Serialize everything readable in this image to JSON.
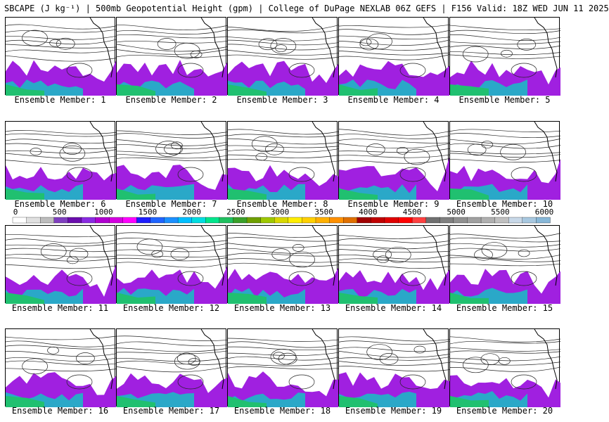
{
  "title": "SBCAPE (J kg⁻¹) | 500mb Geopotential Height (gpm) | College of DuPage NEXLAB 06Z GEFS | F156 Valid: 18Z WED JUN 11 2025",
  "members": [
    {
      "label": "Ensemble Member: 1"
    },
    {
      "label": "Ensemble Member: 2"
    },
    {
      "label": "Ensemble Member: 3"
    },
    {
      "label": "Ensemble Member: 4"
    },
    {
      "label": "Ensemble Member: 5"
    },
    {
      "label": "Ensemble Member: 6"
    },
    {
      "label": "Ensemble Member: 7"
    },
    {
      "label": "Ensemble Member: 8"
    },
    {
      "label": "Ensemble Member: 9"
    },
    {
      "label": "Ensemble Member: 10"
    },
    {
      "label": "Ensemble Member: 11"
    },
    {
      "label": "Ensemble Member: 12"
    },
    {
      "label": "Ensemble Member: 13"
    },
    {
      "label": "Ensemble Member: 14"
    },
    {
      "label": "Ensemble Member: 15"
    },
    {
      "label": "Ensemble Member: 16"
    },
    {
      "label": "Ensemble Member: 17"
    },
    {
      "label": "Ensemble Member: 18"
    },
    {
      "label": "Ensemble Member: 19"
    },
    {
      "label": "Ensemble Member: 20"
    }
  ],
  "colorbar": {
    "ticks": [
      "0",
      "500",
      "1000",
      "1500",
      "2000",
      "2500",
      "3000",
      "3500",
      "4000",
      "4500",
      "5000",
      "5500",
      "6000"
    ],
    "colors": [
      "#ffffff",
      "#e0e0e0",
      "#bdbdbd",
      "#7f3fbf",
      "#6a0dad",
      "#8a2be2",
      "#b000d0",
      "#d400e0",
      "#ff00ff",
      "#1e1eff",
      "#1f64ff",
      "#1c90ff",
      "#00bfff",
      "#00dde0",
      "#00e68c",
      "#20c060",
      "#3aa02a",
      "#6fa000",
      "#9ec800",
      "#d8d800",
      "#ffee00",
      "#ffd000",
      "#ffb000",
      "#ff9000",
      "#e07000",
      "#a00000",
      "#c00000",
      "#e00000",
      "#ff0000",
      "#ff4040",
      "#707070",
      "#808080",
      "#909090",
      "#a0a0a0",
      "#b0b0b0",
      "#c0c0c0",
      "#c8d8e8",
      "#a8c8e0",
      "#88b8d8"
    ]
  }
}
